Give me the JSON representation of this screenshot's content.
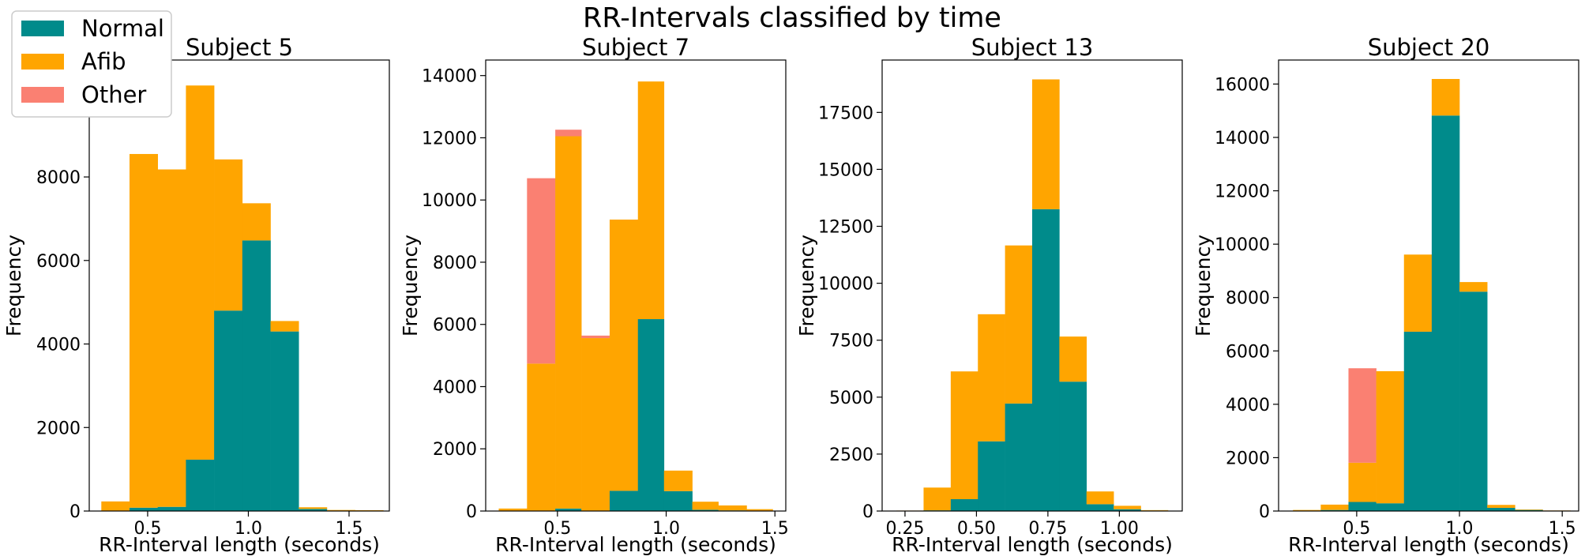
{
  "figure": {
    "title": "RR-Intervals classified by time"
  },
  "legend": {
    "placement": "top-left",
    "items": [
      {
        "label": "Normal",
        "color": "#008b8b"
      },
      {
        "label": "Afib",
        "color": "#ffa500"
      },
      {
        "label": "Other",
        "color": "#fa8072"
      }
    ]
  },
  "chart_data": [
    {
      "type": "bar",
      "stacked": true,
      "title": "Subject 5",
      "xlabel": "RR-Interval length (seconds)",
      "ylabel": "Frequency",
      "xlim": [
        0.21,
        1.7
      ],
      "ylim": [
        0,
        10800
      ],
      "xticks": [
        0.5,
        1.0,
        1.5
      ],
      "xtick_labels": [
        "0.5",
        "1.0",
        "1.5"
      ],
      "yticks": [
        0,
        2000,
        4000,
        6000,
        8000
      ],
      "bins": [
        [
          0.27,
          0.41
        ],
        [
          0.41,
          0.55
        ],
        [
          0.55,
          0.69
        ],
        [
          0.69,
          0.83
        ],
        [
          0.83,
          0.97
        ],
        [
          0.97,
          1.11
        ],
        [
          1.11,
          1.25
        ],
        [
          1.25,
          1.39
        ],
        [
          1.39,
          1.53
        ],
        [
          1.53,
          1.67
        ]
      ],
      "series": [
        {
          "name": "Normal",
          "values": [
            0,
            80,
            100,
            1230,
            4800,
            6480,
            4300,
            50,
            0,
            0
          ]
        },
        {
          "name": "Afib",
          "values": [
            230,
            8470,
            8080,
            8960,
            3620,
            890,
            250,
            40,
            25,
            20
          ]
        },
        {
          "name": "Other",
          "values": [
            0,
            0,
            0,
            0,
            0,
            0,
            0,
            0,
            0,
            0
          ]
        }
      ]
    },
    {
      "type": "bar",
      "stacked": true,
      "title": "Subject 7",
      "xlabel": "RR-Interval length (seconds)",
      "ylabel": "Frequency",
      "xlim": [
        0.17,
        1.55
      ],
      "ylim": [
        0,
        14500
      ],
      "xticks": [
        0.5,
        1.0,
        1.5
      ],
      "xtick_labels": [
        "0.5",
        "1.0",
        "1.5"
      ],
      "yticks": [
        0,
        2000,
        4000,
        6000,
        8000,
        10000,
        12000,
        14000
      ],
      "bins": [
        [
          0.23,
          0.36
        ],
        [
          0.36,
          0.49
        ],
        [
          0.49,
          0.61
        ],
        [
          0.61,
          0.74
        ],
        [
          0.74,
          0.87
        ],
        [
          0.87,
          0.99
        ],
        [
          0.99,
          1.12
        ],
        [
          1.12,
          1.24
        ],
        [
          1.24,
          1.37
        ],
        [
          1.37,
          1.49
        ]
      ],
      "series": [
        {
          "name": "Normal",
          "values": [
            0,
            0,
            80,
            0,
            650,
            6170,
            640,
            40,
            20,
            0
          ]
        },
        {
          "name": "Afib",
          "values": [
            80,
            4740,
            11970,
            5560,
            8720,
            7640,
            660,
            260,
            160,
            60
          ]
        },
        {
          "name": "Other",
          "values": [
            0,
            5960,
            210,
            80,
            0,
            0,
            0,
            0,
            0,
            0
          ]
        }
      ]
    },
    {
      "type": "bar",
      "stacked": true,
      "title": "Subject 13",
      "xlabel": "RR-Interval length (seconds)",
      "ylabel": "Frequency",
      "xlim": [
        0.17,
        1.22
      ],
      "ylim": [
        0,
        19800
      ],
      "xticks": [
        0.25,
        0.5,
        0.75,
        1.0
      ],
      "xtick_labels": [
        "0.25",
        "0.50",
        "0.75",
        "1.00"
      ],
      "yticks": [
        0,
        2500,
        5000,
        7500,
        10000,
        12500,
        15000,
        17500
      ],
      "bins": [
        [
          0.22,
          0.315
        ],
        [
          0.315,
          0.41
        ],
        [
          0.41,
          0.505
        ],
        [
          0.505,
          0.6
        ],
        [
          0.6,
          0.695
        ],
        [
          0.695,
          0.79
        ],
        [
          0.79,
          0.885
        ],
        [
          0.885,
          0.98
        ],
        [
          0.98,
          1.075
        ],
        [
          1.075,
          1.17
        ]
      ],
      "series": [
        {
          "name": "Normal",
          "values": [
            0,
            30,
            520,
            3060,
            4720,
            13250,
            5680,
            300,
            80,
            20
          ]
        },
        {
          "name": "Afib",
          "values": [
            20,
            1000,
            5610,
            5580,
            6940,
            5700,
            1980,
            560,
            150,
            20
          ]
        },
        {
          "name": "Other",
          "values": [
            0,
            0,
            0,
            0,
            0,
            0,
            0,
            0,
            0,
            0
          ]
        }
      ]
    },
    {
      "type": "bar",
      "stacked": true,
      "title": "Subject 20",
      "xlabel": "RR-Interval length (seconds)",
      "ylabel": "Frequency",
      "xlim": [
        0.12,
        1.58
      ],
      "ylim": [
        0,
        16900
      ],
      "xticks": [
        0.5,
        1.0,
        1.5
      ],
      "xtick_labels": [
        "0.5",
        "1.0",
        "1.5"
      ],
      "yticks": [
        0,
        2000,
        4000,
        6000,
        8000,
        10000,
        12000,
        14000,
        16000
      ],
      "bins": [
        [
          0.19,
          0.325
        ],
        [
          0.325,
          0.46
        ],
        [
          0.46,
          0.595
        ],
        [
          0.595,
          0.73
        ],
        [
          0.73,
          0.865
        ],
        [
          0.865,
          1.0
        ],
        [
          1.0,
          1.135
        ],
        [
          1.135,
          1.27
        ],
        [
          1.27,
          1.405
        ],
        [
          1.405,
          1.54
        ]
      ],
      "series": [
        {
          "name": "Normal",
          "values": [
            0,
            40,
            340,
            290,
            6720,
            14820,
            8220,
            120,
            40,
            0
          ]
        },
        {
          "name": "Afib",
          "values": [
            40,
            200,
            1470,
            4950,
            2890,
            1370,
            360,
            110,
            20,
            20
          ]
        },
        {
          "name": "Other",
          "values": [
            0,
            0,
            3540,
            0,
            0,
            0,
            0,
            0,
            0,
            0
          ]
        }
      ]
    }
  ]
}
